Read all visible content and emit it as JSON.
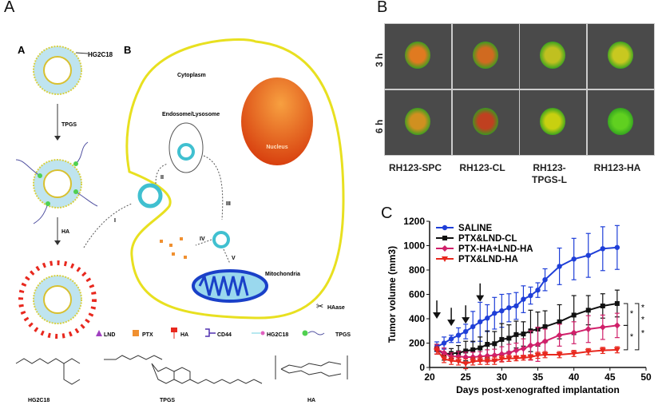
{
  "panels": {
    "a": "A",
    "b": "B",
    "c": "C"
  },
  "schematic": {
    "sub_a": "A",
    "sub_b": "B",
    "hg2c18_label": "HG2C18",
    "step_tpgs": "TPGS",
    "step_ha": "HA",
    "cytoplasm": "Cytoplasm",
    "endosome": "Endosome/Lysosome",
    "nucleus": "Nucleus",
    "mitochondria": "Mitochondria",
    "haase": "HAase",
    "steps": [
      "I",
      "II",
      "III",
      "IV",
      "V"
    ],
    "legend": [
      "LND",
      "PTX",
      "HA",
      "CD44",
      "HG2C18",
      "TPGS"
    ],
    "structures": [
      "HG2C18",
      "TPGS",
      "HA"
    ],
    "colors": {
      "membrane": "#e8e020",
      "nucleus": "#e0501a",
      "ha": "#e8281e",
      "cd44": "#5030b0",
      "mito": "#1a40c8"
    }
  },
  "microscopy": {
    "rows": [
      "3 h",
      "6 h"
    ],
    "columns": [
      "RH123-SPC",
      "RH123-CL",
      "RH123-TPGS-L",
      "RH123-HA"
    ],
    "column_lines": [
      [
        "RH123-SPC"
      ],
      [
        "RH123-CL"
      ],
      [
        "RH123-",
        "TPGS-L"
      ],
      [
        "RH123-HA"
      ]
    ]
  },
  "chart_data": {
    "type": "line",
    "xlabel": "Days post-xenografted implantation",
    "ylabel": "Tumor volume (mm3)",
    "xlim": [
      20,
      50
    ],
    "ylim": [
      0,
      1200
    ],
    "xticks": [
      20,
      25,
      30,
      35,
      40,
      45,
      50
    ],
    "yticks": [
      0,
      200,
      400,
      600,
      800,
      1000,
      1200
    ],
    "legend_position": "top-left",
    "x": [
      21,
      22,
      23,
      24,
      25,
      26,
      27,
      28,
      29,
      30,
      31,
      32,
      33,
      34,
      35,
      36,
      38,
      40,
      42,
      44,
      46
    ],
    "series": [
      {
        "name": "SALINE",
        "color": "#1f3fd8",
        "marker": "circle",
        "values": [
          170,
          200,
          235,
          265,
          295,
          335,
          375,
          405,
          445,
          465,
          490,
          505,
          560,
          590,
          635,
          720,
          830,
          890,
          920,
          975,
          985
        ],
        "error": [
          40,
          50,
          30,
          60,
          60,
          125,
          160,
          110,
          130,
          135,
          115,
          110,
          110,
          70,
          60,
          90,
          150,
          170,
          180,
          180,
          180
        ]
      },
      {
        "name": "PTX&LND-CL",
        "color": "#111111",
        "marker": "square",
        "values": [
          150,
          110,
          115,
          120,
          135,
          145,
          160,
          190,
          195,
          230,
          240,
          270,
          275,
          300,
          315,
          335,
          375,
          430,
          470,
          505,
          525
        ],
        "error": [
          40,
          50,
          40,
          60,
          80,
          70,
          90,
          110,
          100,
          130,
          110,
          110,
          100,
          170,
          140,
          130,
          140,
          160,
          120,
          100,
          110
        ]
      },
      {
        "name": "PTX-HA+LND-HA",
        "color": "#d0206a",
        "marker": "diamond",
        "values": [
          150,
          120,
          90,
          90,
          85,
          85,
          90,
          95,
          100,
          110,
          120,
          140,
          155,
          180,
          190,
          215,
          265,
          285,
          315,
          330,
          345
        ],
        "error": [
          40,
          40,
          30,
          40,
          40,
          40,
          40,
          50,
          50,
          60,
          70,
          60,
          80,
          120,
          140,
          100,
          90,
          90,
          110,
          100,
          100
        ]
      },
      {
        "name": "PTX&LND-HA",
        "color": "#e8281e",
        "marker": "triangle-down",
        "values": [
          140,
          70,
          55,
          50,
          30,
          50,
          55,
          55,
          55,
          70,
          75,
          75,
          80,
          85,
          100,
          105,
          105,
          115,
          130,
          140,
          145
        ],
        "error": [
          30,
          30,
          30,
          30,
          40,
          30,
          30,
          30,
          30,
          25,
          25,
          20,
          20,
          20,
          25,
          25,
          25,
          25,
          25,
          25,
          25
        ]
      }
    ],
    "treatment_days": [
      21,
      23,
      25,
      27
    ],
    "significance": [
      "*",
      "*",
      "*",
      "*"
    ]
  }
}
